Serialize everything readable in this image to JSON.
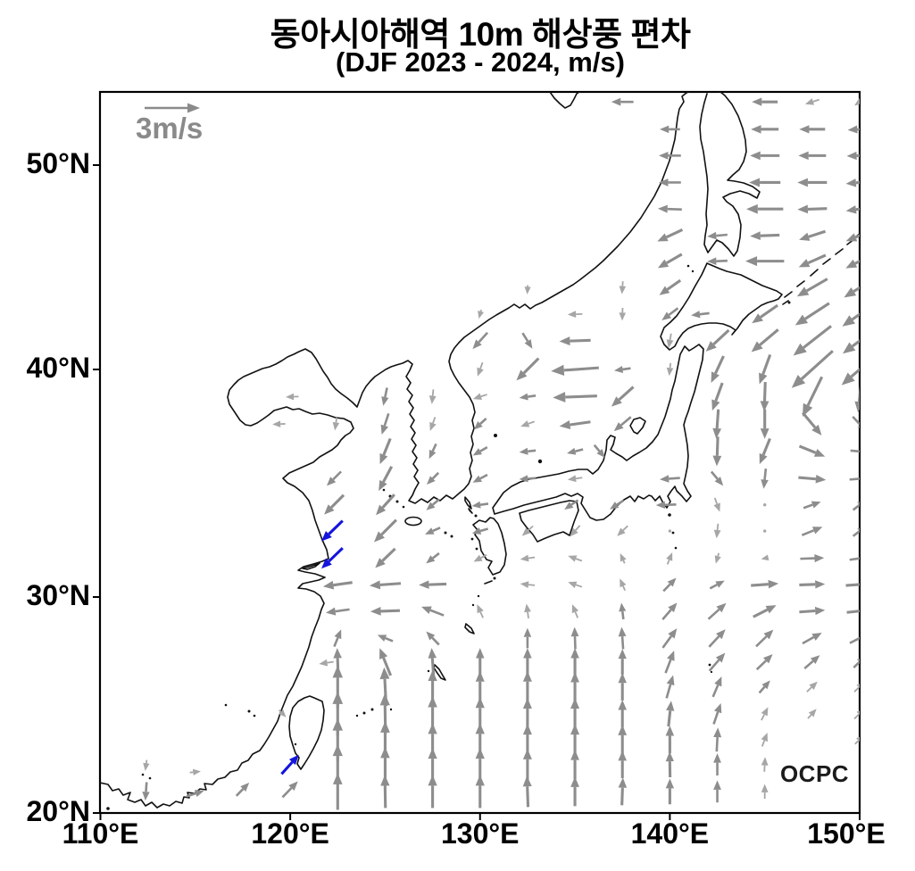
{
  "title": {
    "line1": "동아시아해역 10m 해상풍 편차",
    "line2": "(DJF 2023 - 2024, m/s)"
  },
  "legend": {
    "label": "3m/s",
    "reference_speed_ms": 3
  },
  "watermark": "OCPC",
  "axes": {
    "x": {
      "ticks": [
        {
          "lon": 110,
          "label": "110°E"
        },
        {
          "lon": 120,
          "label": "120°E"
        },
        {
          "lon": 130,
          "label": "130°E"
        },
        {
          "lon": 140,
          "label": "140°E"
        },
        {
          "lon": 150,
          "label": "150°E"
        }
      ]
    },
    "y": {
      "ticks": [
        {
          "lat": 20,
          "label": "20°N"
        },
        {
          "lat": 30,
          "label": "30°N"
        },
        {
          "lat": 40,
          "label": "40°N"
        },
        {
          "lat": 50,
          "label": "50°N"
        }
      ]
    },
    "lon_range": [
      110,
      150
    ],
    "lat_range": [
      20,
      53.6
    ]
  },
  "colors": {
    "arrow_gray": "#8d8d8d",
    "arrow_light": "#a6a6a6",
    "arrow_blue": "#1414dd",
    "coast": "#111111",
    "frame": "#000000",
    "legend_gray": "#8a8a8a"
  },
  "chart_data": {
    "type": "quiver-map",
    "units": "m/s",
    "reference_speed_ms": 3,
    "arrow_format": "[lon_east, lat_north, direction_toward_deg_from_north, speed_ms, significant_blue_flag]",
    "arrows": [
      [
        137.5,
        53,
        270,
        1.2
      ],
      [
        145,
        53,
        270,
        1.4
      ],
      [
        147.5,
        53,
        252,
        0.8
      ],
      [
        150,
        53,
        235,
        0.7
      ],
      [
        140,
        51.7,
        270,
        1.1
      ],
      [
        145,
        51.7,
        270,
        1.5
      ],
      [
        147.5,
        51.7,
        270,
        1.4
      ],
      [
        150,
        51.7,
        266,
        1.3
      ],
      [
        140,
        50.45,
        270,
        1.2
      ],
      [
        145,
        50.45,
        270,
        1.6
      ],
      [
        147.5,
        50.45,
        270,
        1.5
      ],
      [
        150,
        50.45,
        268,
        1.4
      ],
      [
        140,
        49.15,
        270,
        1.2
      ],
      [
        145,
        49.15,
        270,
        1.7
      ],
      [
        147.5,
        49.15,
        270,
        1.6
      ],
      [
        150,
        49.15,
        265,
        1.5
      ],
      [
        140,
        47.85,
        272,
        1.3
      ],
      [
        145,
        47.85,
        270,
        2.0
      ],
      [
        147.5,
        47.85,
        268,
        1.6
      ],
      [
        150,
        47.85,
        262,
        1.5
      ],
      [
        140,
        46.55,
        245,
        1.5
      ],
      [
        142.5,
        46.55,
        265,
        1.1
      ],
      [
        145,
        46.55,
        268,
        1.6
      ],
      [
        147.5,
        46.55,
        252,
        1.5
      ],
      [
        150,
        46.55,
        248,
        1.6
      ],
      [
        140,
        45.3,
        240,
        1.5
      ],
      [
        142.5,
        45.3,
        268,
        1.1
      ],
      [
        145,
        45.3,
        270,
        2.1
      ],
      [
        147.5,
        45.3,
        246,
        1.6
      ],
      [
        150,
        45.3,
        243,
        1.7
      ],
      [
        137.5,
        44,
        184,
        0.7
      ],
      [
        140,
        44,
        235,
        1.4
      ],
      [
        147.5,
        44,
        240,
        1.9
      ],
      [
        150,
        44,
        238,
        2.0
      ],
      [
        132.5,
        43.9,
        183,
        0.5
      ],
      [
        130,
        42.7,
        195,
        0.5
      ],
      [
        135,
        42.7,
        268,
        0.8
      ],
      [
        137.5,
        42.7,
        182,
        0.7
      ],
      [
        140,
        42.7,
        233,
        1.1
      ],
      [
        141.6,
        42.7,
        263,
        1.0
      ],
      [
        145,
        42.7,
        235,
        1.7
      ],
      [
        147.5,
        42.7,
        237,
        2.2
      ],
      [
        150,
        42.7,
        235,
        2.3
      ],
      [
        130,
        41.4,
        222,
        1.2
      ],
      [
        132.5,
        41.4,
        148,
        1.0
      ],
      [
        135,
        41.4,
        268,
        1.7
      ],
      [
        140,
        41.4,
        190,
        0.8
      ],
      [
        142.5,
        41.4,
        227,
        1.7
      ],
      [
        145,
        41.4,
        230,
        1.9
      ],
      [
        147.5,
        41.4,
        232,
        2.6
      ],
      [
        150,
        41.4,
        233,
        2.3
      ],
      [
        130,
        40,
        200,
        0.8
      ],
      [
        132.5,
        40,
        225,
        1.7
      ],
      [
        135,
        40,
        266,
        2.6
      ],
      [
        137.5,
        40,
        262,
        0.9
      ],
      [
        140,
        40,
        186,
        0.7
      ],
      [
        142.5,
        40,
        205,
        1.6
      ],
      [
        145,
        40,
        200,
        1.7
      ],
      [
        147.5,
        40,
        228,
        3.0
      ],
      [
        150,
        40,
        229,
        2.6
      ],
      [
        120.1,
        38.8,
        268,
        0.7
      ],
      [
        125,
        38.8,
        192,
        1.0
      ],
      [
        127.5,
        38.8,
        186,
        0.8
      ],
      [
        130,
        38.8,
        252,
        0.8
      ],
      [
        132.5,
        38.8,
        262,
        0.9
      ],
      [
        135,
        38.8,
        268,
        2.4
      ],
      [
        137.5,
        38.8,
        228,
        1.6
      ],
      [
        142.5,
        38.8,
        200,
        1.6
      ],
      [
        145,
        38.8,
        182,
        1.6
      ],
      [
        147.5,
        38.8,
        206,
        2.4
      ],
      [
        150,
        38.8,
        186,
        1.7
      ],
      [
        119.4,
        37.6,
        268,
        0.7
      ],
      [
        122.4,
        37.6,
        188,
        0.7
      ],
      [
        125,
        37.6,
        198,
        1.2
      ],
      [
        127.5,
        37.6,
        200,
        0.8
      ],
      [
        130,
        37.6,
        228,
        0.9
      ],
      [
        132.5,
        37.6,
        250,
        0.8
      ],
      [
        135,
        37.6,
        262,
        1.7
      ],
      [
        137.5,
        37.6,
        230,
        1.2
      ],
      [
        142.5,
        37.6,
        184,
        1.6
      ],
      [
        145,
        37.6,
        180,
        1.6
      ],
      [
        147.5,
        37.6,
        140,
        1.6
      ],
      [
        150,
        37.6,
        137,
        1.1
      ],
      [
        125,
        36.4,
        202,
        1.5
      ],
      [
        127.5,
        36.4,
        205,
        0.9
      ],
      [
        130,
        36.4,
        240,
        0.9
      ],
      [
        132.5,
        36.4,
        264,
        0.9
      ],
      [
        135,
        36.4,
        256,
        0.9
      ],
      [
        136.3,
        36.4,
        140,
        0.9
      ],
      [
        142.5,
        36.4,
        182,
        1.6
      ],
      [
        145,
        36.4,
        202,
        1.5
      ],
      [
        147.5,
        36.4,
        112,
        1.5
      ],
      [
        150,
        36.4,
        95,
        1.0
      ],
      [
        122.3,
        35.2,
        225,
        1.1
      ],
      [
        125,
        35.2,
        208,
        1.5
      ],
      [
        127.5,
        35.2,
        225,
        0.9
      ],
      [
        130,
        35.2,
        242,
        0.9
      ],
      [
        132.5,
        35.2,
        266,
        0.9
      ],
      [
        135,
        35.2,
        262,
        0.8
      ],
      [
        140,
        35.2,
        266,
        1.1
      ],
      [
        142.5,
        35.2,
        140,
        1.0
      ],
      [
        145,
        35.2,
        186,
        1.1
      ],
      [
        147.5,
        35.2,
        95,
        1.5
      ],
      [
        150,
        35.2,
        85,
        1.1
      ],
      [
        122.3,
        34.05,
        225,
        1.5
      ],
      [
        125,
        34.05,
        222,
        1.5
      ],
      [
        127.5,
        34.05,
        230,
        0.9
      ],
      [
        130,
        34.05,
        262,
        0.9
      ],
      [
        134.8,
        34.05,
        235,
        0.9
      ],
      [
        137.2,
        34.05,
        237,
        0.9
      ],
      [
        139.8,
        34.05,
        268,
        1.1
      ],
      [
        142.5,
        34.05,
        160,
        0.8
      ],
      [
        145,
        34.05,
        0,
        0.15
      ],
      [
        147.5,
        34.05,
        70,
        1.0
      ],
      [
        150,
        34.05,
        52,
        0.9
      ],
      [
        122.2,
        32.9,
        226,
        1.6,
        1
      ],
      [
        125,
        32.9,
        225,
        1.7
      ],
      [
        127.5,
        32.9,
        246,
        0.9
      ],
      [
        130,
        32.9,
        254,
        0.9
      ],
      [
        132.5,
        32.9,
        228,
        0.8
      ],
      [
        135,
        32.9,
        222,
        0.8
      ],
      [
        137.5,
        32.9,
        226,
        0.8
      ],
      [
        140,
        32.9,
        0,
        0.15
      ],
      [
        142.5,
        32.9,
        186,
        0.8
      ],
      [
        145,
        32.9,
        0,
        0.15
      ],
      [
        147.5,
        32.9,
        68,
        1.2
      ],
      [
        150,
        32.9,
        52,
        0.9
      ],
      [
        122.2,
        31.7,
        226,
        1.6,
        1
      ],
      [
        125,
        31.7,
        226,
        1.5
      ],
      [
        127.5,
        31.7,
        232,
        0.9
      ],
      [
        130,
        31.7,
        242,
        0.8
      ],
      [
        132.5,
        31.7,
        262,
        0.8
      ],
      [
        135,
        31.7,
        290,
        0.8
      ],
      [
        137.5,
        31.7,
        336,
        0.6
      ],
      [
        140,
        31.7,
        22,
        0.7
      ],
      [
        142.5,
        31.7,
        196,
        0.6
      ],
      [
        145,
        31.7,
        258,
        0.4
      ],
      [
        147.5,
        31.7,
        88,
        1.3
      ],
      [
        150,
        31.7,
        82,
        1.1
      ],
      [
        122.5,
        30.55,
        262,
        1.6
      ],
      [
        125,
        30.55,
        266,
        1.7
      ],
      [
        127.5,
        30.55,
        268,
        1.5
      ],
      [
        132.5,
        30.55,
        276,
        0.8
      ],
      [
        135,
        30.55,
        289,
        0.8
      ],
      [
        137.5,
        30.55,
        336,
        0.7
      ],
      [
        140,
        30.55,
        44,
        1.0
      ],
      [
        142.5,
        30.55,
        62,
        0.9
      ],
      [
        145,
        30.55,
        86,
        1.5
      ],
      [
        147.5,
        30.55,
        88,
        1.4
      ],
      [
        150,
        30.55,
        86,
        1.5
      ],
      [
        122.5,
        29.35,
        262,
        1.3
      ],
      [
        125,
        29.35,
        268,
        1.6
      ],
      [
        127.5,
        29.35,
        291,
        1.3
      ],
      [
        130,
        29.35,
        336,
        0.8
      ],
      [
        132.5,
        29.35,
        352,
        0.8
      ],
      [
        135,
        29.35,
        338,
        0.8
      ],
      [
        137.5,
        29.35,
        353,
        0.9
      ],
      [
        140,
        29.35,
        41,
        1.2
      ],
      [
        142.5,
        29.35,
        48,
        1.3
      ],
      [
        145,
        29.35,
        63,
        1.4
      ],
      [
        147.5,
        29.35,
        86,
        1.4
      ],
      [
        150,
        29.35,
        84,
        1.4
      ],
      [
        122.5,
        28.1,
        22,
        1.0
      ],
      [
        125,
        28.1,
        292,
        0.9
      ],
      [
        127.5,
        28.1,
        316,
        1.0
      ],
      [
        132.5,
        28.1,
        0,
        1.1
      ],
      [
        135,
        28.1,
        358,
        1.2
      ],
      [
        137.5,
        28.1,
        356,
        1.2
      ],
      [
        140,
        28.1,
        36,
        1.3
      ],
      [
        142.5,
        28.1,
        43,
        1.3
      ],
      [
        145,
        28.1,
        46,
        1.3
      ],
      [
        147.5,
        28.1,
        61,
        1.2
      ],
      [
        150,
        28.1,
        63,
        1.2
      ],
      [
        121.9,
        26.95,
        262,
        0.8
      ],
      [
        122.5,
        27,
        358,
        1.5
      ],
      [
        125,
        27,
        338,
        1.6
      ],
      [
        127.5,
        27,
        356,
        1.5
      ],
      [
        130,
        27,
        0,
        1.5
      ],
      [
        132.5,
        27,
        0,
        1.5
      ],
      [
        135,
        27,
        0,
        1.5
      ],
      [
        137.5,
        27,
        0,
        1.4
      ],
      [
        140,
        27,
        21,
        1.3
      ],
      [
        142.5,
        27,
        41,
        1.3
      ],
      [
        145,
        27,
        46,
        1.2
      ],
      [
        147.5,
        27,
        49,
        1.1
      ],
      [
        150,
        27,
        46,
        0.9
      ],
      [
        122.5,
        25.85,
        0,
        2.3
      ],
      [
        125,
        25.85,
        357,
        2.1
      ],
      [
        127.5,
        25.85,
        0,
        1.8
      ],
      [
        130,
        25.85,
        0,
        1.7
      ],
      [
        132.5,
        25.85,
        0,
        1.7
      ],
      [
        135,
        25.85,
        0,
        1.6
      ],
      [
        137.5,
        25.85,
        0,
        1.5
      ],
      [
        140,
        25.85,
        16,
        1.3
      ],
      [
        142.5,
        25.85,
        23,
        1.2
      ],
      [
        145,
        25.85,
        41,
        0.9
      ],
      [
        147.5,
        25.85,
        46,
        0.8
      ],
      [
        150,
        25.85,
        46,
        0.8
      ],
      [
        119.6,
        24.6,
        136,
        0.55
      ],
      [
        122.5,
        24.6,
        0,
        2.4
      ],
      [
        125,
        24.6,
        359,
        2.2
      ],
      [
        127.5,
        24.6,
        0,
        1.9
      ],
      [
        130,
        24.6,
        0,
        1.8
      ],
      [
        132.5,
        24.6,
        0,
        1.7
      ],
      [
        135,
        24.6,
        0,
        1.7
      ],
      [
        137.5,
        24.6,
        0,
        1.5
      ],
      [
        140,
        24.6,
        6,
        1.4
      ],
      [
        142.5,
        24.6,
        19,
        1.2
      ],
      [
        145,
        24.6,
        27,
        0.8
      ],
      [
        147.5,
        24.6,
        42,
        0.7
      ],
      [
        150,
        24.6,
        46,
        0.8
      ],
      [
        122.5,
        23.4,
        0,
        2.3
      ],
      [
        125,
        23.4,
        0,
        2.0
      ],
      [
        127.5,
        23.4,
        0,
        1.8
      ],
      [
        130,
        23.4,
        0,
        1.8
      ],
      [
        132.5,
        23.4,
        0,
        1.7
      ],
      [
        135,
        23.4,
        0,
        1.7
      ],
      [
        137.5,
        23.4,
        0,
        1.6
      ],
      [
        140,
        23.4,
        0,
        1.5
      ],
      [
        142.5,
        23.4,
        3,
        1.3
      ],
      [
        145,
        23.4,
        21,
        0.8
      ],
      [
        150,
        23.4,
        46,
        0.7
      ],
      [
        120,
        22.25,
        42,
        1.4,
        1
      ],
      [
        122.5,
        22.25,
        0,
        2.2
      ],
      [
        125,
        22.25,
        0,
        1.9
      ],
      [
        127.5,
        22.25,
        0,
        1.8
      ],
      [
        130,
        22.25,
        0,
        1.8
      ],
      [
        132.5,
        22.25,
        0,
        1.7
      ],
      [
        135,
        22.25,
        0,
        1.6
      ],
      [
        137.5,
        22.25,
        0,
        1.5
      ],
      [
        140,
        22.25,
        359,
        1.4
      ],
      [
        142.5,
        22.25,
        0,
        1.2
      ],
      [
        145,
        22.25,
        3,
        0.8
      ],
      [
        112.4,
        22.2,
        188,
        0.6
      ],
      [
        112.4,
        21,
        184,
        1.0
      ],
      [
        115,
        21.9,
        84,
        0.6
      ],
      [
        115,
        20.9,
        72,
        1.0
      ],
      [
        117.5,
        21.1,
        44,
        1.0
      ],
      [
        120,
        21.1,
        44,
        1.2
      ],
      [
        122.5,
        21,
        0,
        2.0
      ],
      [
        125,
        21,
        359,
        1.8
      ],
      [
        127.5,
        21,
        0,
        1.8
      ],
      [
        130,
        21,
        0,
        1.8
      ],
      [
        132.5,
        21,
        358,
        1.7
      ],
      [
        135,
        21,
        0,
        1.6
      ],
      [
        137.5,
        21,
        2,
        1.5
      ],
      [
        140,
        21,
        0,
        1.4
      ],
      [
        142.5,
        21,
        0,
        1.2
      ],
      [
        145,
        21,
        0,
        0.8
      ]
    ]
  }
}
